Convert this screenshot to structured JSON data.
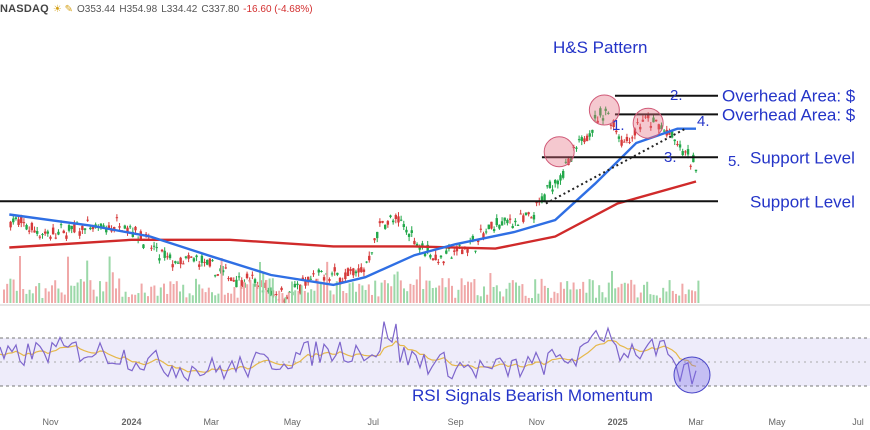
{
  "header": {
    "exchange": "NASDAQ",
    "icons": "☀ ✎",
    "open": "O353.44",
    "high": "H354.98",
    "low": "L334.42",
    "close": "C337.80",
    "change": "-16.60 (-4.68%)"
  },
  "chart_data": {
    "type": "candlestick",
    "title": "H&S Pattern",
    "x_ticks": [
      "Nov",
      "2024",
      "Mar",
      "May",
      "Jul",
      "Sep",
      "Nov",
      "2025",
      "Mar",
      "May",
      "Jul"
    ],
    "ylim": [
      150,
      380
    ],
    "price": [
      {
        "date": "2023-10-02",
        "close": 250
      },
      {
        "date": "2023-10-16",
        "close": 243
      },
      {
        "date": "2023-10-30",
        "close": 236
      },
      {
        "date": "2023-11-13",
        "close": 240
      },
      {
        "date": "2023-11-27",
        "close": 243
      },
      {
        "date": "2023-12-11",
        "close": 241
      },
      {
        "date": "2023-12-25",
        "close": 248
      },
      {
        "date": "2024-01-08",
        "close": 236
      },
      {
        "date": "2024-01-22",
        "close": 218
      },
      {
        "date": "2024-02-05",
        "close": 210
      },
      {
        "date": "2024-02-19",
        "close": 214
      },
      {
        "date": "2024-03-04",
        "close": 204
      },
      {
        "date": "2024-03-18",
        "close": 198
      },
      {
        "date": "2024-04-01",
        "close": 194
      },
      {
        "date": "2024-04-15",
        "close": 184
      },
      {
        "date": "2024-04-29",
        "close": 183
      },
      {
        "date": "2024-05-13",
        "close": 194
      },
      {
        "date": "2024-05-27",
        "close": 200
      },
      {
        "date": "2024-06-10",
        "close": 199
      },
      {
        "date": "2024-06-24",
        "close": 205
      },
      {
        "date": "2024-07-08",
        "close": 250
      },
      {
        "date": "2024-07-22",
        "close": 247
      },
      {
        "date": "2024-08-05",
        "close": 228
      },
      {
        "date": "2024-08-19",
        "close": 214
      },
      {
        "date": "2024-09-02",
        "close": 222
      },
      {
        "date": "2024-09-16",
        "close": 230
      },
      {
        "date": "2024-09-30",
        "close": 245
      },
      {
        "date": "2024-10-14",
        "close": 249
      },
      {
        "date": "2024-10-28",
        "close": 251
      },
      {
        "date": "2024-11-11",
        "close": 280
      },
      {
        "date": "2024-11-25",
        "close": 300
      },
      {
        "date": "2024-12-09",
        "close": 330
      },
      {
        "date": "2024-12-23",
        "close": 350
      },
      {
        "date": "2025-01-06",
        "close": 320
      },
      {
        "date": "2025-01-20",
        "close": 340
      },
      {
        "date": "2025-02-03",
        "close": 335
      },
      {
        "date": "2025-02-17",
        "close": 315
      },
      {
        "date": "2025-03-03",
        "close": 297
      }
    ],
    "ma50": [
      {
        "date": "2023-10-01",
        "value": 255
      },
      {
        "date": "2023-12-01",
        "value": 245
      },
      {
        "date": "2024-01-15",
        "value": 235
      },
      {
        "date": "2024-03-01",
        "value": 217
      },
      {
        "date": "2024-04-15",
        "value": 200
      },
      {
        "date": "2024-06-01",
        "value": 191
      },
      {
        "date": "2024-06-25",
        "value": 198
      },
      {
        "date": "2024-08-01",
        "value": 218
      },
      {
        "date": "2024-09-01",
        "value": 228
      },
      {
        "date": "2024-10-15",
        "value": 239
      },
      {
        "date": "2024-11-15",
        "value": 250
      },
      {
        "date": "2024-12-15",
        "value": 283
      },
      {
        "date": "2025-01-15",
        "value": 320
      },
      {
        "date": "2025-02-15",
        "value": 333
      },
      {
        "date": "2025-03-01",
        "value": 333
      }
    ],
    "ma200": [
      {
        "date": "2023-10-01",
        "value": 225
      },
      {
        "date": "2024-01-01",
        "value": 232
      },
      {
        "date": "2024-03-15",
        "value": 232
      },
      {
        "date": "2024-06-01",
        "value": 226
      },
      {
        "date": "2024-08-01",
        "value": 226
      },
      {
        "date": "2024-10-01",
        "value": 224
      },
      {
        "date": "2024-11-15",
        "value": 235
      },
      {
        "date": "2025-01-01",
        "value": 265
      },
      {
        "date": "2025-03-01",
        "value": 285
      }
    ],
    "levels": [
      {
        "label": "Overhead Area: $",
        "value": 363
      },
      {
        "label": "Overhead Area: $",
        "value": 346
      },
      {
        "label": "Support Level",
        "value": 307
      },
      {
        "label": "Support Level",
        "value": 267
      }
    ],
    "pattern_points": [
      "1.",
      "2.",
      "3.",
      "4.",
      "5."
    ],
    "rsi_annotation": "RSI Signals Bearish Momentum",
    "rsi_levels": [
      70,
      30
    ]
  }
}
